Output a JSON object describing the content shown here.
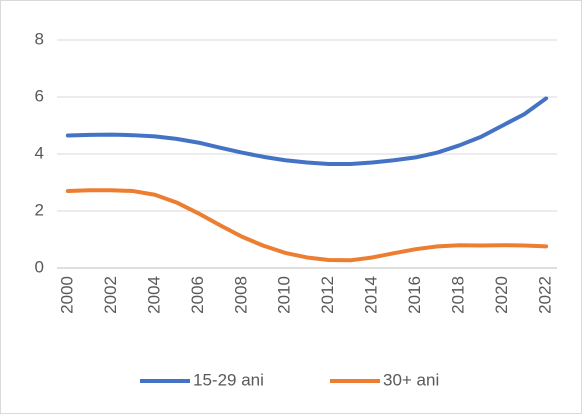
{
  "chart_data": {
    "type": "line",
    "x": [
      2000,
      2001,
      2002,
      2003,
      2004,
      2005,
      2006,
      2007,
      2008,
      2009,
      2010,
      2011,
      2012,
      2013,
      2014,
      2015,
      2016,
      2017,
      2018,
      2019,
      2020,
      2021,
      2022
    ],
    "series": [
      {
        "name": "15-29 ani",
        "color": "#4472c4",
        "values": [
          4.65,
          4.67,
          4.68,
          4.66,
          4.62,
          4.53,
          4.4,
          4.22,
          4.05,
          3.9,
          3.78,
          3.7,
          3.65,
          3.65,
          3.7,
          3.78,
          3.88,
          4.05,
          4.3,
          4.6,
          5.0,
          5.4,
          5.95
        ]
      },
      {
        "name": "30+ ani",
        "color": "#ed7d31",
        "values": [
          2.7,
          2.73,
          2.73,
          2.7,
          2.57,
          2.3,
          1.92,
          1.5,
          1.1,
          0.78,
          0.53,
          0.37,
          0.28,
          0.27,
          0.37,
          0.52,
          0.66,
          0.76,
          0.8,
          0.79,
          0.8,
          0.79,
          0.76
        ]
      }
    ],
    "xlim": [
      1999.5,
      2022.5
    ],
    "xticks": [
      2000,
      2002,
      2004,
      2006,
      2008,
      2010,
      2012,
      2014,
      2016,
      2018,
      2020,
      2022
    ],
    "ylim": [
      0,
      8
    ],
    "yticks": [
      0,
      2,
      4,
      6,
      8
    ],
    "grid": true,
    "legend": "bottom"
  }
}
